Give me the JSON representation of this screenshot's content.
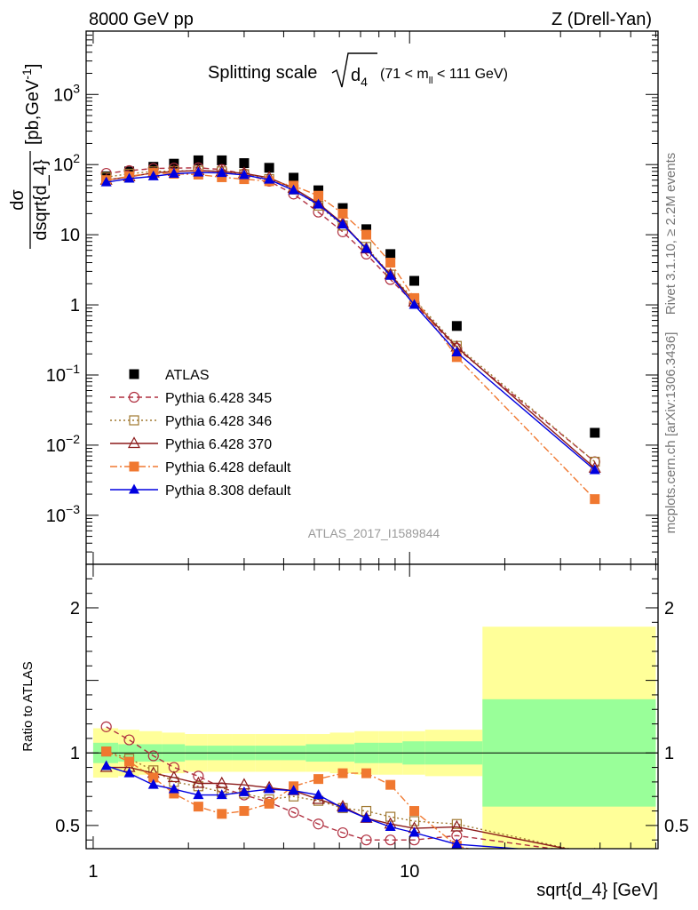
{
  "header": {
    "left": "8000 GeV pp",
    "right": "Z (Drell-Yan)"
  },
  "title": {
    "prefix": "Splitting scale ",
    "var_base": "d",
    "var_sub": "4",
    "cut_pre": "(71 < m",
    "cut_sub": "ll",
    "cut_post": " < 111 GeV)"
  },
  "side_labels": {
    "rivet": "Rivet 3.1.10, ≥ 2.2M events",
    "mcplots": "mcplots.cern.ch [arXiv:1306.3436]"
  },
  "watermark": "ATLAS_2017_I1589844",
  "ylabel_top": {
    "num": "dσ",
    "den": "dsqrt{d_4}",
    "unit_pre": "[pb,GeV",
    "unit_sup": "-1",
    "unit_post": "]"
  },
  "ylabel_bottom": "Ratio to ATLAS",
  "xlabel": "sqrt{d_4} [GeV]",
  "chart_data": [
    {
      "type": "line",
      "panel": "main",
      "xscale": "log",
      "yscale": "log",
      "xlim": [
        0.95,
        61
      ],
      "ylim": [
        0.0002,
        8000
      ],
      "x_ticks": [
        {
          "v": 1,
          "label": "1"
        },
        {
          "v": 10,
          "label": "10"
        }
      ],
      "y_ticks": [
        {
          "v": 0.001,
          "b": "10",
          "e": "−3"
        },
        {
          "v": 0.01,
          "b": "10",
          "e": "−2"
        },
        {
          "v": 0.1,
          "b": "10",
          "e": "−1"
        },
        {
          "v": 1,
          "b": "1",
          "e": ""
        },
        {
          "v": 10,
          "b": "10",
          "e": ""
        },
        {
          "v": 100,
          "b": "10",
          "e": "2"
        },
        {
          "v": 1000,
          "b": "10",
          "e": "3"
        }
      ],
      "legend_position": "lower-left",
      "series": [
        {
          "name": "ATLAS",
          "color": "#000000",
          "marker": "square-filled",
          "line": "none",
          "x": [
            1.1,
            1.3,
            1.55,
            1.8,
            2.15,
            2.55,
            3.0,
            3.6,
            4.3,
            5.15,
            6.15,
            7.3,
            8.7,
            10.35,
            14.1,
            38.5
          ],
          "y": [
            68,
            80,
            93,
            103,
            115,
            115,
            105,
            90,
            65,
            43,
            24,
            12,
            5.3,
            2.2,
            0.5,
            0.015
          ]
        },
        {
          "name": "Pythia 6.428 345",
          "color": "#b03040",
          "marker": "circle-open",
          "line": "dashed",
          "x": [
            1.1,
            1.3,
            1.55,
            1.8,
            2.15,
            2.55,
            3.0,
            3.6,
            4.3,
            5.15,
            6.15,
            7.3,
            8.7,
            10.35,
            14.1,
            38.5
          ],
          "y": [
            75,
            82,
            88,
            89,
            90,
            85,
            74,
            58,
            38,
            21,
            11,
            5.3,
            2.3,
            1.05,
            0.24,
            0.0058
          ]
        },
        {
          "name": "Pythia 6.428 346",
          "color": "#a07830",
          "marker": "square-open",
          "line": "dotted",
          "x": [
            1.1,
            1.3,
            1.55,
            1.8,
            2.15,
            2.55,
            3.0,
            3.6,
            4.3,
            5.15,
            6.15,
            7.3,
            8.7,
            10.35,
            14.1,
            38.5
          ],
          "y": [
            66,
            74,
            80,
            81,
            82,
            80,
            73,
            62,
            44,
            26,
            13.5,
            6.7,
            2.7,
            1.2,
            0.26,
            0.0058
          ]
        },
        {
          "name": "Pythia 6.428 370",
          "color": "#8b1a1a",
          "marker": "triangle-open",
          "line": "solid",
          "x": [
            1.1,
            1.3,
            1.55,
            1.8,
            2.15,
            2.55,
            3.0,
            3.6,
            4.3,
            5.15,
            6.15,
            7.3,
            8.7,
            10.35,
            14.1,
            38.5
          ],
          "y": [
            60,
            67,
            76,
            80,
            82,
            80,
            75,
            65,
            46,
            28,
            14.5,
            6.3,
            2.7,
            1.1,
            0.25,
            0.0047
          ]
        },
        {
          "name": "Pythia 6.428 default",
          "color": "#f07830",
          "marker": "square-filled",
          "line": "dashdot",
          "x": [
            1.1,
            1.3,
            1.55,
            1.8,
            2.15,
            2.55,
            3.0,
            3.6,
            4.3,
            5.15,
            6.15,
            7.3,
            8.7,
            10.35,
            14.1,
            38.5
          ],
          "y": [
            60,
            68,
            76,
            74,
            72,
            66,
            62,
            58,
            50,
            36,
            20,
            10,
            4,
            1.25,
            0.18,
            0.0017
          ]
        },
        {
          "name": "Pythia 8.308 default",
          "color": "#0000e0",
          "marker": "triangle-filled",
          "line": "solid",
          "x": [
            1.1,
            1.3,
            1.55,
            1.8,
            2.15,
            2.55,
            3.0,
            3.6,
            4.3,
            5.15,
            6.15,
            7.3,
            8.7,
            10.35,
            14.1,
            38.5
          ],
          "y": [
            56,
            63,
            68,
            74,
            77,
            76,
            71,
            61,
            43,
            27,
            14,
            6.3,
            2.6,
            1.0,
            0.21,
            0.0044
          ]
        }
      ]
    },
    {
      "type": "line",
      "panel": "ratio",
      "xscale": "log",
      "yscale": "linear",
      "xlim": [
        0.95,
        61
      ],
      "ylim": [
        0.34,
        2.3
      ],
      "x_ticks": [
        {
          "v": 1,
          "label": "1"
        },
        {
          "v": 10,
          "label": "10"
        }
      ],
      "y_ticks": [
        {
          "v": 0.5,
          "label": "0.5"
        },
        {
          "v": 1,
          "label": "1"
        },
        {
          "v": 2,
          "label": "2"
        }
      ],
      "uncertainty_bands": {
        "colors": {
          "inner": "#99ff99",
          "outer": "#ffff99"
        },
        "x_edges": [
          1,
          1.2,
          1.4,
          1.65,
          1.95,
          2.3,
          2.75,
          3.25,
          3.9,
          4.7,
          5.6,
          6.7,
          8.0,
          9.5,
          11.2,
          17.0,
          60
        ],
        "inner_lo": [
          0.93,
          0.94,
          0.94,
          0.94,
          0.95,
          0.95,
          0.95,
          0.95,
          0.95,
          0.94,
          0.94,
          0.93,
          0.93,
          0.92,
          0.92,
          0.63
        ],
        "inner_hi": [
          1.07,
          1.06,
          1.06,
          1.06,
          1.05,
          1.05,
          1.05,
          1.05,
          1.05,
          1.06,
          1.06,
          1.07,
          1.07,
          1.08,
          1.08,
          1.37
        ],
        "outer_lo": [
          0.83,
          0.84,
          0.85,
          0.86,
          0.87,
          0.87,
          0.87,
          0.87,
          0.87,
          0.87,
          0.86,
          0.85,
          0.85,
          0.85,
          0.84,
          0.0
        ],
        "outer_hi": [
          1.17,
          1.16,
          1.15,
          1.14,
          1.13,
          1.13,
          1.13,
          1.13,
          1.13,
          1.13,
          1.14,
          1.15,
          1.15,
          1.15,
          1.16,
          1.87
        ]
      },
      "series": [
        {
          "name": "Pythia 6.428 345",
          "color": "#b03040",
          "marker": "circle-open",
          "line": "dashed",
          "x": [
            1.1,
            1.3,
            1.55,
            1.8,
            2.15,
            2.55,
            3.0,
            3.6,
            4.3,
            5.15,
            6.15,
            7.3,
            8.7,
            10.35,
            14.1,
            38.5
          ],
          "y": [
            1.18,
            1.09,
            0.98,
            0.9,
            0.84,
            0.76,
            0.71,
            0.66,
            0.59,
            0.51,
            0.45,
            0.4,
            0.4,
            0.4,
            0.43,
            0.3
          ]
        },
        {
          "name": "Pythia 6.428 346",
          "color": "#a07830",
          "marker": "square-open",
          "line": "dotted",
          "x": [
            1.1,
            1.3,
            1.55,
            1.8,
            2.15,
            2.55,
            3.0,
            3.6,
            4.3,
            5.15,
            6.15,
            7.3,
            8.7,
            10.35,
            14.1,
            38.5
          ],
          "y": [
            1.01,
            0.96,
            0.88,
            0.8,
            0.77,
            0.73,
            0.72,
            0.68,
            0.7,
            0.67,
            0.62,
            0.6,
            0.56,
            0.53,
            0.51,
            0.3
          ]
        },
        {
          "name": "Pythia 6.428 370",
          "color": "#8b1a1a",
          "marker": "triangle-open",
          "line": "solid",
          "x": [
            1.1,
            1.3,
            1.55,
            1.8,
            2.15,
            2.55,
            3.0,
            3.6,
            4.3,
            5.15,
            6.15,
            7.3,
            8.7,
            10.35,
            14.1,
            38.5
          ],
          "y": [
            0.9,
            0.9,
            0.86,
            0.83,
            0.79,
            0.79,
            0.78,
            0.76,
            0.74,
            0.68,
            0.63,
            0.55,
            0.51,
            0.48,
            0.49,
            0.3
          ]
        },
        {
          "name": "Pythia 6.428 default",
          "color": "#f07830",
          "marker": "square-filled",
          "line": "dashdot",
          "x": [
            1.1,
            1.3,
            1.55,
            1.8,
            2.15,
            2.55,
            3.0,
            3.6,
            4.3,
            5.15,
            6.15,
            7.3,
            8.7,
            10.35,
            14.1,
            38.5
          ],
          "y": [
            1.01,
            0.94,
            0.83,
            0.72,
            0.63,
            0.58,
            0.6,
            0.65,
            0.77,
            0.82,
            0.86,
            0.86,
            0.78,
            0.6,
            0.36,
            0.12
          ]
        },
        {
          "name": "Pythia 8.308 default",
          "color": "#0000e0",
          "marker": "triangle-filled",
          "line": "solid",
          "x": [
            1.1,
            1.3,
            1.55,
            1.8,
            2.15,
            2.55,
            3.0,
            3.6,
            4.3,
            5.15,
            6.15,
            7.3,
            8.7,
            10.35,
            14.1,
            38.5
          ],
          "y": [
            0.91,
            0.86,
            0.78,
            0.75,
            0.71,
            0.71,
            0.73,
            0.75,
            0.74,
            0.71,
            0.62,
            0.55,
            0.49,
            0.45,
            0.37,
            0.3
          ]
        }
      ]
    }
  ]
}
